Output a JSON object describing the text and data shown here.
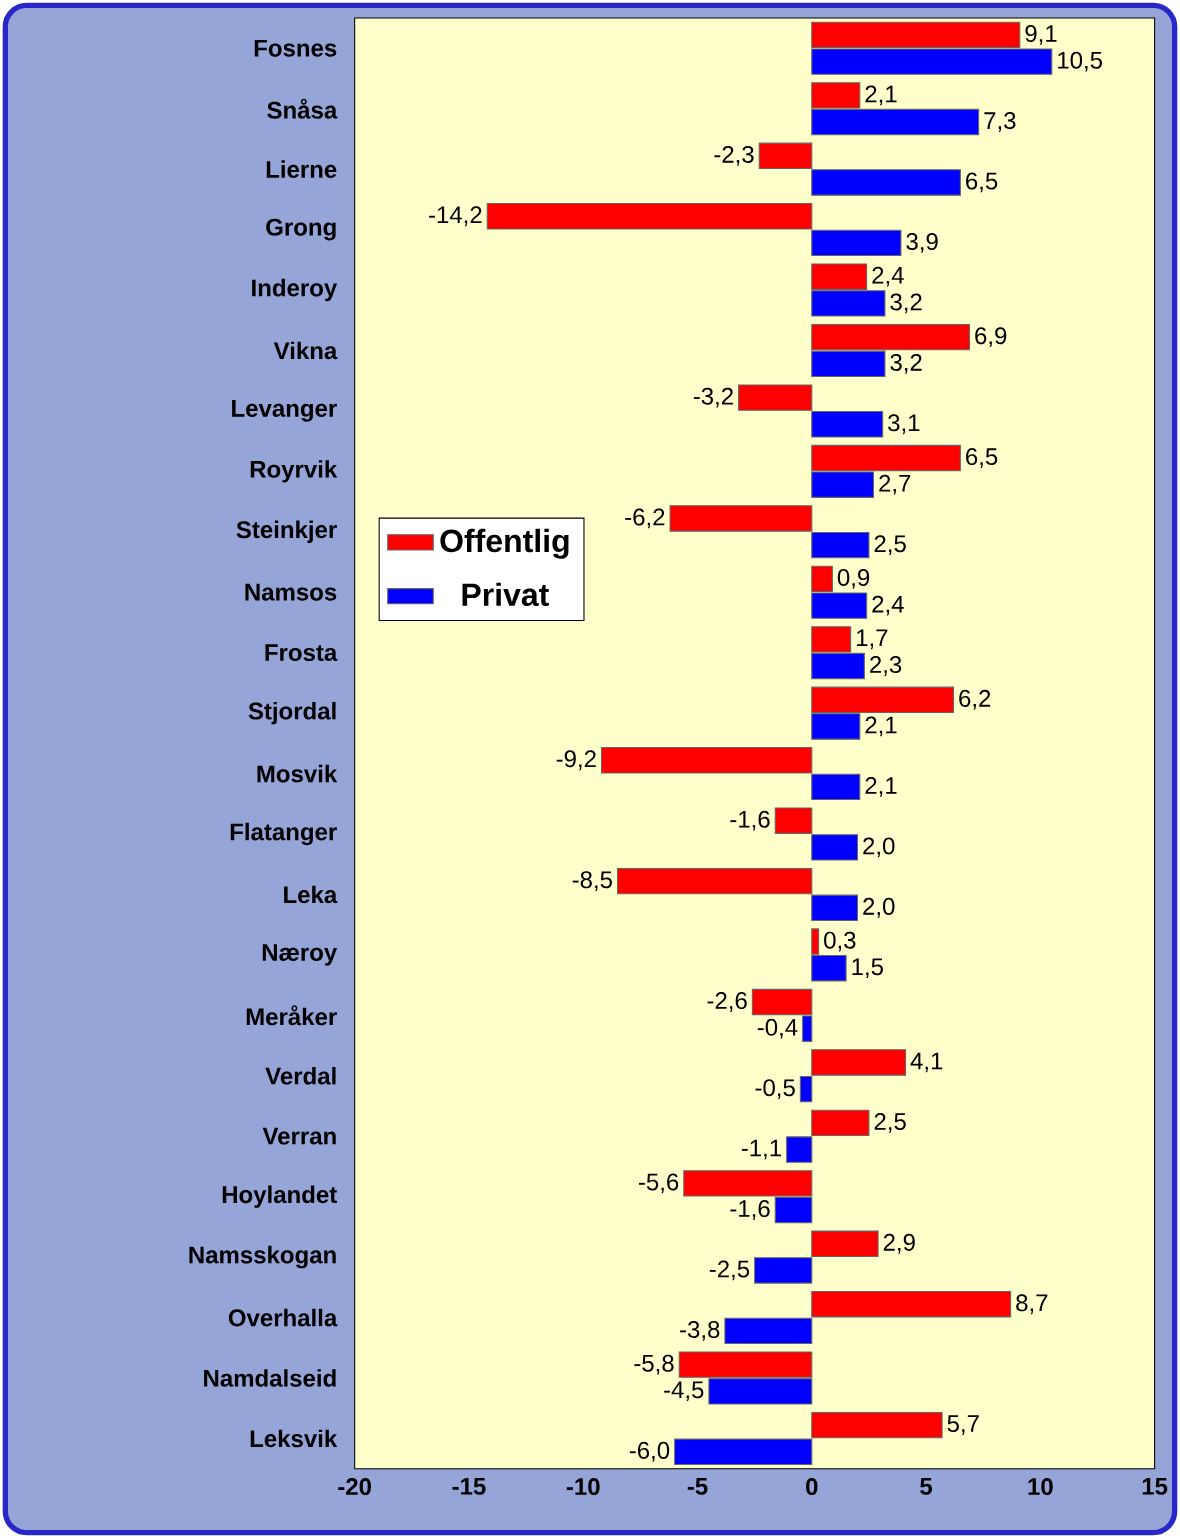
{
  "chart_data": {
    "type": "bar",
    "orientation": "horizontal",
    "categories": [
      "Fosnes",
      "Snåsa",
      "Lierne",
      "Grong",
      "Inderoy",
      "Vikna",
      "Levanger",
      "Royrvik",
      "Steinkjer",
      "Namsos",
      "Frosta",
      "Stjordal",
      "Mosvik",
      "Flatanger",
      "Leka",
      "Næroy",
      "Meråker",
      "Verdal",
      "Verran",
      "Hoylandet",
      "Namsskogan",
      "Overhalla",
      "Namdalseid",
      "Leksvik"
    ],
    "series": [
      {
        "name": "Offentlig",
        "color": "#ff0000",
        "values": [
          9.1,
          2.1,
          -2.3,
          -14.2,
          2.4,
          6.9,
          -3.2,
          6.5,
          -6.2,
          0.9,
          1.7,
          6.2,
          -9.2,
          -1.6,
          -8.5,
          0.3,
          -2.6,
          4.1,
          2.5,
          -5.6,
          2.9,
          8.7,
          -5.8,
          5.7
        ],
        "value_labels": [
          "9,1",
          "2,1",
          "-2,3",
          "-14,2",
          "2,4",
          "6,9",
          "-3,2",
          "6,5",
          "-6,2",
          "0,9",
          "1,7",
          "6,2",
          "-9,2",
          "-1,6",
          "-8,5",
          "0,3",
          "-2,6",
          "4,1",
          "2,5",
          "-5,6",
          "2,9",
          "8,7",
          "-5,8",
          "5,7"
        ]
      },
      {
        "name": "Privat",
        "color": "#0000ff",
        "values": [
          10.5,
          7.3,
          6.5,
          3.9,
          3.2,
          3.2,
          3.1,
          2.7,
          2.5,
          2.4,
          2.3,
          2.1,
          2.1,
          2.0,
          2.0,
          1.5,
          -0.4,
          -0.5,
          -1.1,
          -1.6,
          -2.5,
          -3.8,
          -4.5,
          -6.0
        ],
        "value_labels": [
          "10,5",
          "7,3",
          "6,5",
          "3,9",
          "3,2",
          "3,2",
          "3,1",
          "2,7",
          "2,5",
          "2,4",
          "2,3",
          "2,1",
          "2,1",
          "2,0",
          "2,0",
          "1,5",
          "-0,4",
          "-0,5",
          "-1,1",
          "-1,6",
          "-2,5",
          "-3,8",
          "-4,5",
          "-6,0"
        ]
      }
    ],
    "xlim": [
      -20,
      15
    ],
    "xticks": [
      -20,
      -15,
      -10,
      -5,
      0,
      5,
      10,
      15
    ],
    "grid": false,
    "legend": "left"
  }
}
